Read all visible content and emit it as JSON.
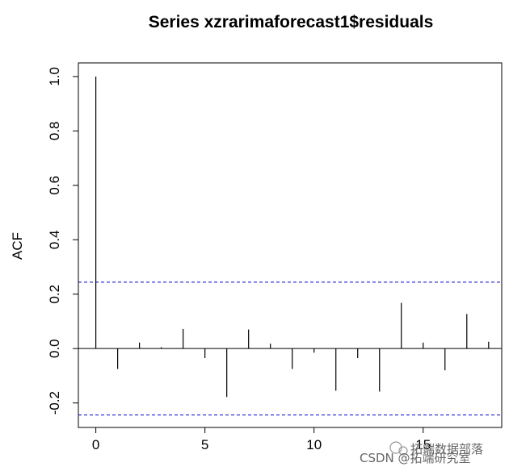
{
  "chart_data": {
    "type": "bar",
    "title": "Series  xzrarimaforecast1$residuals",
    "xlabel": "",
    "ylabel": "ACF",
    "lags": [
      0,
      1,
      2,
      3,
      4,
      5,
      6,
      7,
      8,
      9,
      10,
      11,
      12,
      13,
      14,
      15,
      16,
      17,
      18
    ],
    "values": [
      1.0,
      -0.075,
      0.022,
      0.005,
      0.072,
      -0.035,
      -0.178,
      0.07,
      0.018,
      -0.075,
      -0.015,
      -0.155,
      -0.035,
      -0.158,
      0.168,
      0.022,
      -0.08,
      0.127,
      0.025
    ],
    "confidence_bounds": [
      0.244,
      -0.244
    ],
    "xlim": [
      -0.8,
      18.6
    ],
    "ylim": [
      -0.29,
      1.05
    ],
    "xticks": [
      0,
      5,
      10,
      15
    ],
    "yticks": [
      -0.2,
      0.0,
      0.2,
      0.4,
      0.6,
      0.8,
      1.0
    ],
    "xtick_labels": [
      "0",
      "5",
      "10",
      "15"
    ],
    "ytick_labels": [
      "-0.2",
      "0.0",
      "0.2",
      "0.4",
      "0.6",
      "0.8",
      "1.0"
    ],
    "grid": false,
    "zero_line": true,
    "bound_color": "#0000cc"
  },
  "watermark": {
    "line1": "拓端数据部落",
    "line2": "CSDN @拓端研究室"
  }
}
